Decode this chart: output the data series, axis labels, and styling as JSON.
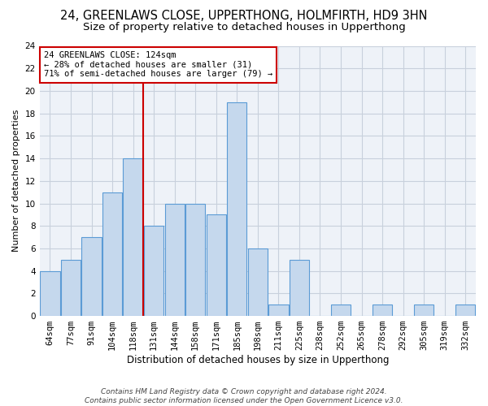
{
  "title1": "24, GREENLAWS CLOSE, UPPERTHONG, HOLMFIRTH, HD9 3HN",
  "title2": "Size of property relative to detached houses in Upperthong",
  "xlabel": "Distribution of detached houses by size in Upperthong",
  "ylabel": "Number of detached properties",
  "categories": [
    "64sqm",
    "77sqm",
    "91sqm",
    "104sqm",
    "118sqm",
    "131sqm",
    "144sqm",
    "158sqm",
    "171sqm",
    "185sqm",
    "198sqm",
    "211sqm",
    "225sqm",
    "238sqm",
    "252sqm",
    "265sqm",
    "278sqm",
    "292sqm",
    "305sqm",
    "319sqm",
    "332sqm"
  ],
  "values": [
    4,
    5,
    7,
    11,
    14,
    8,
    10,
    10,
    9,
    19,
    6,
    1,
    5,
    0,
    1,
    0,
    1,
    0,
    1,
    0,
    1
  ],
  "bar_color": "#c5d8ed",
  "bar_edge_color": "#5b9bd5",
  "vline_x": 4.5,
  "vline_color": "#cc0000",
  "annotation_line1": "24 GREENLAWS CLOSE: 124sqm",
  "annotation_line2": "← 28% of detached houses are smaller (31)",
  "annotation_line3": "71% of semi-detached houses are larger (79) →",
  "annotation_box_color": "#ffffff",
  "annotation_box_edge": "#cc0000",
  "ylim": [
    0,
    24
  ],
  "yticks": [
    0,
    2,
    4,
    6,
    8,
    10,
    12,
    14,
    16,
    18,
    20,
    22,
    24
  ],
  "grid_color": "#c8d0dc",
  "bg_color": "#eef2f8",
  "footer": "Contains HM Land Registry data © Crown copyright and database right 2024.\nContains public sector information licensed under the Open Government Licence v3.0.",
  "title1_fontsize": 10.5,
  "title2_fontsize": 9.5,
  "xlabel_fontsize": 8.5,
  "ylabel_fontsize": 8,
  "tick_fontsize": 7.5,
  "annot_fontsize": 7.5,
  "footer_fontsize": 6.5
}
